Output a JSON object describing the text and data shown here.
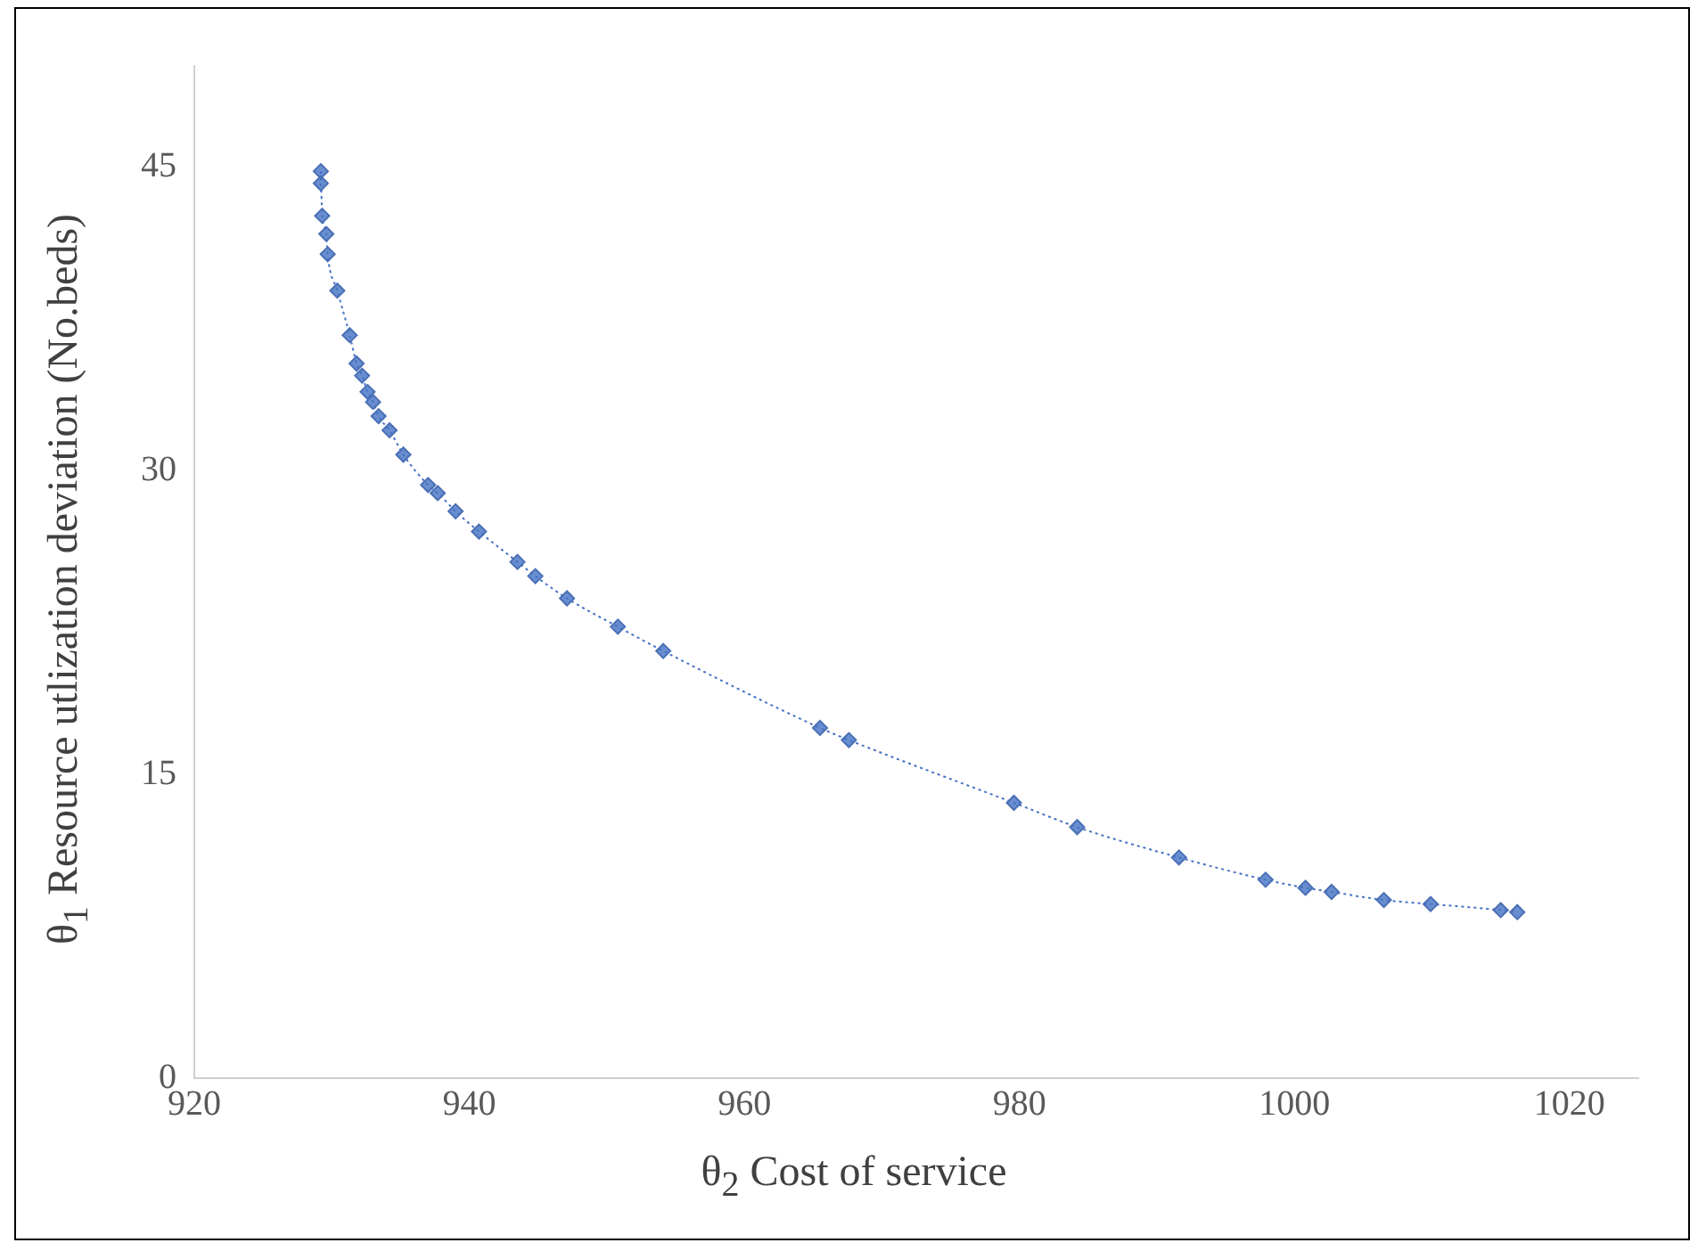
{
  "chart_data": {
    "type": "line",
    "xlabel": "θ$_{2}$ Cost of service",
    "ylabel": "θ$_{1}$ Resource utlization deviation (No.beds)",
    "xlim": [
      920,
      1025
    ],
    "xticks": [
      920,
      940,
      960,
      980,
      1000,
      1020
    ],
    "ylim": [
      0,
      50
    ],
    "yticks": [
      0,
      15,
      30,
      45
    ],
    "grid": false,
    "legend": false,
    "marker": "diamond",
    "line_style": "dotted",
    "series": [
      {
        "color": "#4472c4",
        "x": [
          929.2,
          929.2,
          929.3,
          929.6,
          929.7,
          930.4,
          931.3,
          931.8,
          932.2,
          932.6,
          933.0,
          933.4,
          934.2,
          935.2,
          937.0,
          937.7,
          939.0,
          940.7,
          943.5,
          944.8,
          947.1,
          950.8,
          954.1,
          965.5,
          967.6,
          979.6,
          984.2,
          991.6,
          997.9,
          1000.8,
          1002.7,
          1006.5,
          1009.9,
          1015.0,
          1016.2
        ],
        "values": [
          44.8,
          44.2,
          42.6,
          41.7,
          40.7,
          38.9,
          36.7,
          35.3,
          34.7,
          33.9,
          33.4,
          32.7,
          32.0,
          30.8,
          29.3,
          28.9,
          28.0,
          27.0,
          25.5,
          24.8,
          23.7,
          22.3,
          21.1,
          17.3,
          16.7,
          13.6,
          12.4,
          10.9,
          9.8,
          9.4,
          9.2,
          8.8,
          8.6,
          8.3,
          8.2
        ]
      }
    ]
  }
}
